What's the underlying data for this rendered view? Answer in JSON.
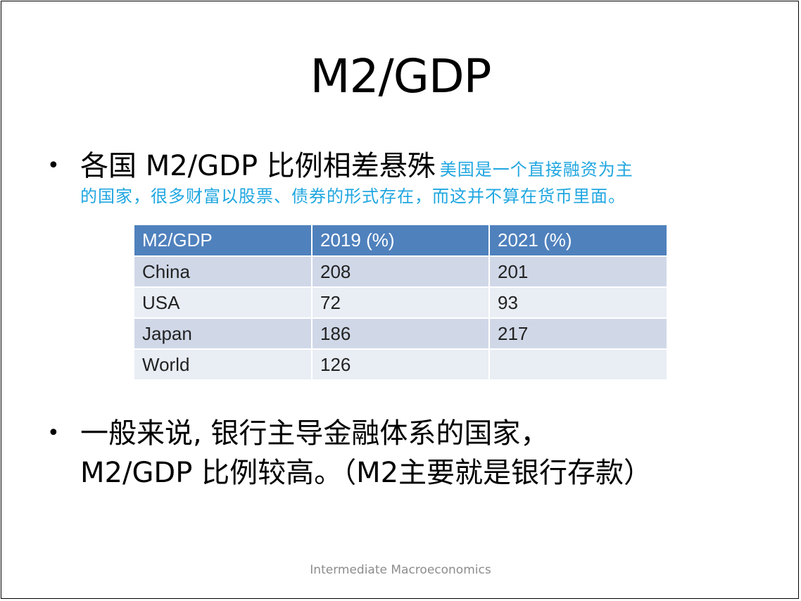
{
  "slide": {
    "title": "M2/GDP",
    "bullet1": {
      "text": "各国 M2/GDP 比例相差悬殊",
      "note_line1": "美国是一个直接融资为主",
      "note_line2": "的国家，很多财富以股票、债券的形式存在，而这并不算在货币里面。"
    },
    "table": {
      "headers": [
        "M2/GDP",
        "2019 (%)",
        "2021 (%)"
      ],
      "rows": [
        [
          "China",
          "208",
          "201"
        ],
        [
          "USA",
          "72",
          "93"
        ],
        [
          "Japan",
          "186",
          "217"
        ],
        [
          "World",
          "126",
          ""
        ]
      ]
    },
    "bullet2": {
      "line1": "一般来说, 银行主导金融体系的国家，",
      "line2": "M2/GDP 比例较高。（M2主要就是银行存款）"
    },
    "footer": "Intermediate Macroeconomics",
    "colors": {
      "header_bg": "#4f81bd",
      "row_dark": "#d0d8e8",
      "row_light": "#e9edf4",
      "note": "#1fa6e0"
    }
  }
}
